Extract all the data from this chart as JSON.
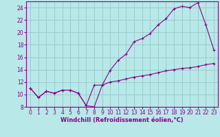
{
  "xlabel": "Windchill (Refroidissement éolien,°C)",
  "background_color": "#b8e8e8",
  "line_color": "#880088",
  "grid_color": "#99cccc",
  "xlim": [
    -0.5,
    23.5
  ],
  "ylim": [
    8,
    25
  ],
  "xticks": [
    0,
    1,
    2,
    3,
    4,
    5,
    6,
    7,
    8,
    9,
    10,
    11,
    12,
    13,
    14,
    15,
    16,
    17,
    18,
    19,
    20,
    21,
    22,
    23
  ],
  "yticks": [
    8,
    10,
    12,
    14,
    16,
    18,
    20,
    22,
    24
  ],
  "line1_x": [
    0,
    1,
    2,
    3,
    4,
    5,
    6,
    7,
    8,
    9,
    10,
    11,
    12,
    13,
    14,
    15,
    16,
    17,
    18,
    19,
    20,
    21,
    22,
    23
  ],
  "line1_y": [
    11.0,
    9.5,
    10.5,
    10.2,
    10.7,
    10.7,
    10.2,
    8.2,
    8.0,
    11.5,
    13.9,
    15.5,
    16.5,
    18.5,
    19.0,
    19.8,
    21.2,
    22.2,
    23.8,
    24.2,
    24.0,
    24.8,
    21.2,
    17.2
  ],
  "line2_x": [
    0,
    1,
    2,
    3,
    4,
    5,
    6,
    7,
    8,
    9,
    10,
    11,
    12,
    13,
    14,
    15,
    16,
    17,
    18,
    19,
    20,
    21,
    22,
    23
  ],
  "line2_y": [
    11.0,
    9.5,
    10.5,
    10.2,
    10.7,
    10.7,
    10.2,
    8.2,
    11.5,
    11.5,
    12.0,
    12.2,
    12.5,
    12.8,
    13.0,
    13.2,
    13.5,
    13.8,
    14.0,
    14.2,
    14.3,
    14.5,
    14.8,
    15.0
  ],
  "marker": "+",
  "xlabel_fontsize": 6,
  "tick_fontsize": 5.5
}
